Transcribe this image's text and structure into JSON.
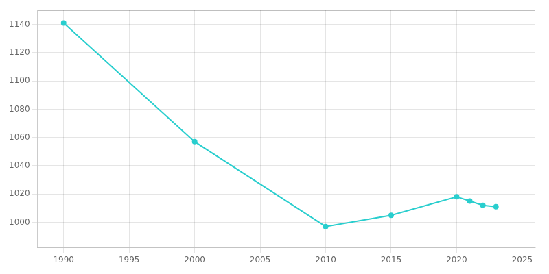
{
  "chart_data": {
    "type": "line",
    "x": [
      1990,
      2000,
      2010,
      2015,
      2020,
      2021,
      2022,
      2023
    ],
    "values": [
      1141,
      1057,
      997,
      1005,
      1018,
      1015,
      1012,
      1011
    ],
    "color": "#29CECE",
    "marker": "circle",
    "xlim": [
      1988,
      2026
    ],
    "ylim": [
      982,
      1150
    ],
    "xticks": [
      1990,
      1995,
      2000,
      2005,
      2010,
      2015,
      2020,
      2025
    ],
    "yticks": [
      1000,
      1020,
      1040,
      1060,
      1080,
      1100,
      1120,
      1140
    ],
    "grid": true
  }
}
